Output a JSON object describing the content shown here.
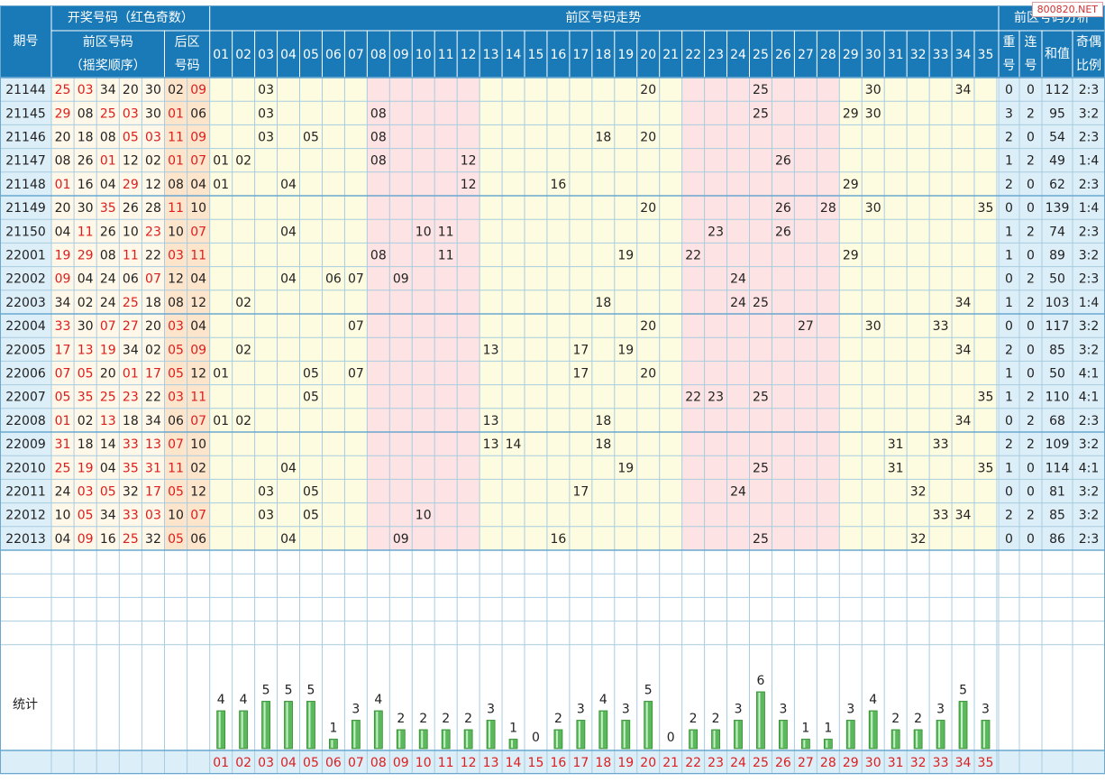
{
  "watermark": "800820.NET",
  "header": {
    "period_label": "期号",
    "draw_title": "开奖号码（红色奇数）",
    "front_zone_line1": "前区号码",
    "front_zone_line2": "（摇奖顺序）",
    "back_zone_line1": "后区",
    "back_zone_line2": "号码",
    "trend_title": "前区号码走势",
    "analysis_title": "前区号码分析",
    "repeat_line1": "重",
    "repeat_line2": "号",
    "consec_line1": "连",
    "consec_line2": "号",
    "sum_label": "和值",
    "ratio_line1": "奇偶",
    "ratio_line2": "比例",
    "stats_label": "统计"
  },
  "colors": {
    "header_bg": "#1a7ab8",
    "odd_number": "#dc1e1e",
    "even_number": "#222222",
    "grid": "#a8cce0",
    "bar_fill": "#5cb85c",
    "back_zone_bg": "#fde5cc",
    "yellow_band": "#fefce0",
    "pink_band": "#fde3e3",
    "analysis_bg": "#dceef8"
  },
  "chart_data": {
    "type": "table",
    "columns": [
      "01",
      "02",
      "03",
      "04",
      "05",
      "06",
      "07",
      "08",
      "09",
      "10",
      "11",
      "12",
      "13",
      "14",
      "15",
      "16",
      "17",
      "18",
      "19",
      "20",
      "21",
      "22",
      "23",
      "24",
      "25",
      "26",
      "27",
      "28",
      "29",
      "30",
      "31",
      "32",
      "33",
      "34",
      "35"
    ],
    "rows": [
      {
        "period": "21144",
        "front": [
          "25",
          "03",
          "34",
          "20",
          "30"
        ],
        "back": [
          "02",
          "09"
        ],
        "repeat": "0",
        "consec": "0",
        "sum": "112",
        "ratio": "2:3"
      },
      {
        "period": "21145",
        "front": [
          "29",
          "08",
          "25",
          "03",
          "30"
        ],
        "back": [
          "01",
          "06"
        ],
        "repeat": "3",
        "consec": "2",
        "sum": "95",
        "ratio": "3:2"
      },
      {
        "period": "21146",
        "front": [
          "20",
          "18",
          "08",
          "05",
          "03"
        ],
        "back": [
          "11",
          "09"
        ],
        "repeat": "2",
        "consec": "0",
        "sum": "54",
        "ratio": "2:3"
      },
      {
        "period": "21147",
        "front": [
          "08",
          "26",
          "01",
          "12",
          "02"
        ],
        "back": [
          "01",
          "07"
        ],
        "repeat": "1",
        "consec": "2",
        "sum": "49",
        "ratio": "1:4"
      },
      {
        "period": "21148",
        "front": [
          "01",
          "16",
          "04",
          "29",
          "12"
        ],
        "back": [
          "08",
          "04"
        ],
        "repeat": "2",
        "consec": "0",
        "sum": "62",
        "ratio": "2:3"
      },
      {
        "period": "21149",
        "front": [
          "20",
          "30",
          "35",
          "26",
          "28"
        ],
        "back": [
          "11",
          "10"
        ],
        "repeat": "0",
        "consec": "0",
        "sum": "139",
        "ratio": "1:4"
      },
      {
        "period": "21150",
        "front": [
          "04",
          "11",
          "26",
          "10",
          "23"
        ],
        "back": [
          "10",
          "07"
        ],
        "repeat": "1",
        "consec": "2",
        "sum": "74",
        "ratio": "2:3"
      },
      {
        "period": "22001",
        "front": [
          "19",
          "29",
          "08",
          "11",
          "22"
        ],
        "back": [
          "03",
          "11"
        ],
        "repeat": "1",
        "consec": "0",
        "sum": "89",
        "ratio": "3:2"
      },
      {
        "period": "22002",
        "front": [
          "09",
          "04",
          "24",
          "06",
          "07"
        ],
        "back": [
          "12",
          "04"
        ],
        "repeat": "0",
        "consec": "2",
        "sum": "50",
        "ratio": "2:3"
      },
      {
        "period": "22003",
        "front": [
          "34",
          "02",
          "24",
          "25",
          "18"
        ],
        "back": [
          "08",
          "12"
        ],
        "repeat": "1",
        "consec": "2",
        "sum": "103",
        "ratio": "1:4"
      },
      {
        "period": "22004",
        "front": [
          "33",
          "30",
          "07",
          "27",
          "20"
        ],
        "back": [
          "03",
          "04"
        ],
        "repeat": "0",
        "consec": "0",
        "sum": "117",
        "ratio": "3:2"
      },
      {
        "period": "22005",
        "front": [
          "17",
          "13",
          "19",
          "34",
          "02"
        ],
        "back": [
          "05",
          "09"
        ],
        "repeat": "2",
        "consec": "0",
        "sum": "85",
        "ratio": "3:2"
      },
      {
        "period": "22006",
        "front": [
          "07",
          "05",
          "20",
          "01",
          "17"
        ],
        "back": [
          "05",
          "12"
        ],
        "repeat": "1",
        "consec": "0",
        "sum": "50",
        "ratio": "4:1"
      },
      {
        "period": "22007",
        "front": [
          "05",
          "35",
          "25",
          "23",
          "22"
        ],
        "back": [
          "03",
          "11"
        ],
        "repeat": "1",
        "consec": "2",
        "sum": "110",
        "ratio": "4:1"
      },
      {
        "period": "22008",
        "front": [
          "01",
          "02",
          "13",
          "18",
          "34"
        ],
        "back": [
          "06",
          "07"
        ],
        "repeat": "0",
        "consec": "2",
        "sum": "68",
        "ratio": "2:3"
      },
      {
        "period": "22009",
        "front": [
          "31",
          "18",
          "14",
          "33",
          "13"
        ],
        "back": [
          "07",
          "10"
        ],
        "repeat": "2",
        "consec": "2",
        "sum": "109",
        "ratio": "3:2"
      },
      {
        "period": "22010",
        "front": [
          "25",
          "19",
          "04",
          "35",
          "31"
        ],
        "back": [
          "11",
          "02"
        ],
        "repeat": "1",
        "consec": "0",
        "sum": "114",
        "ratio": "4:1"
      },
      {
        "period": "22011",
        "front": [
          "24",
          "03",
          "05",
          "32",
          "17"
        ],
        "back": [
          "05",
          "12"
        ],
        "repeat": "0",
        "consec": "0",
        "sum": "81",
        "ratio": "3:2"
      },
      {
        "period": "22012",
        "front": [
          "10",
          "05",
          "34",
          "33",
          "03"
        ],
        "back": [
          "10",
          "07"
        ],
        "repeat": "2",
        "consec": "2",
        "sum": "85",
        "ratio": "3:2"
      },
      {
        "period": "22013",
        "front": [
          "04",
          "09",
          "16",
          "25",
          "32"
        ],
        "back": [
          "05",
          "06"
        ],
        "repeat": "0",
        "consec": "0",
        "sum": "86",
        "ratio": "2:3"
      }
    ],
    "stats": {
      "type": "bar",
      "categories": [
        "01",
        "02",
        "03",
        "04",
        "05",
        "06",
        "07",
        "08",
        "09",
        "10",
        "11",
        "12",
        "13",
        "14",
        "15",
        "16",
        "17",
        "18",
        "19",
        "20",
        "21",
        "22",
        "23",
        "24",
        "25",
        "26",
        "27",
        "28",
        "29",
        "30",
        "31",
        "32",
        "33",
        "34",
        "35"
      ],
      "values": [
        4,
        4,
        5,
        5,
        5,
        1,
        3,
        4,
        2,
        2,
        2,
        2,
        3,
        1,
        0,
        2,
        3,
        4,
        3,
        5,
        0,
        2,
        2,
        3,
        6,
        3,
        1,
        1,
        3,
        4,
        2,
        2,
        3,
        5,
        3
      ],
      "ylim": [
        0,
        6
      ]
    }
  }
}
